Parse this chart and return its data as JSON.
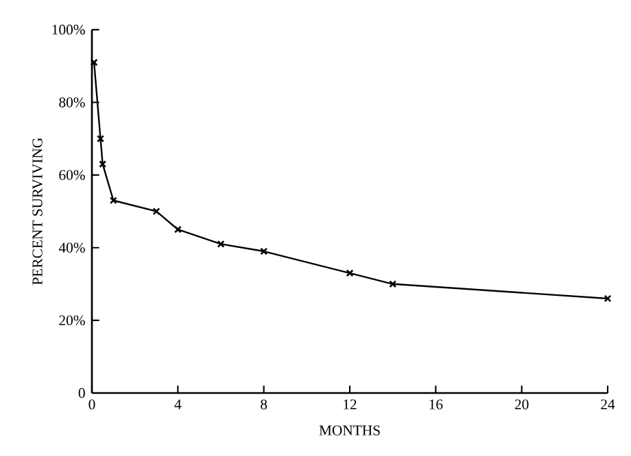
{
  "chart_data": {
    "type": "line",
    "xlabel": "MONTHS",
    "ylabel": "PERCENT SURVIVING",
    "x": [
      0.1,
      0.4,
      0.5,
      1,
      3,
      4,
      6,
      8,
      12,
      14,
      24
    ],
    "series": [
      {
        "color": "#000000",
        "values": [
          91,
          70,
          63,
          53,
          50,
          45,
          41,
          39,
          33,
          30,
          26
        ]
      }
    ],
    "xlim": [
      0,
      24
    ],
    "xticks": [
      0,
      4,
      8,
      12,
      16,
      20,
      24
    ],
    "ylim": [
      0,
      100
    ],
    "yticks": [
      0,
      {
        "value": 20,
        "label": "20%"
      },
      {
        "value": 40,
        "label": "40%"
      },
      {
        "value": 60,
        "label": "60%"
      },
      {
        "value": 80,
        "label": "80%"
      },
      {
        "value": 100,
        "label": "100%"
      }
    ],
    "marker": "cross",
    "line_style": "solid",
    "grid": false
  }
}
